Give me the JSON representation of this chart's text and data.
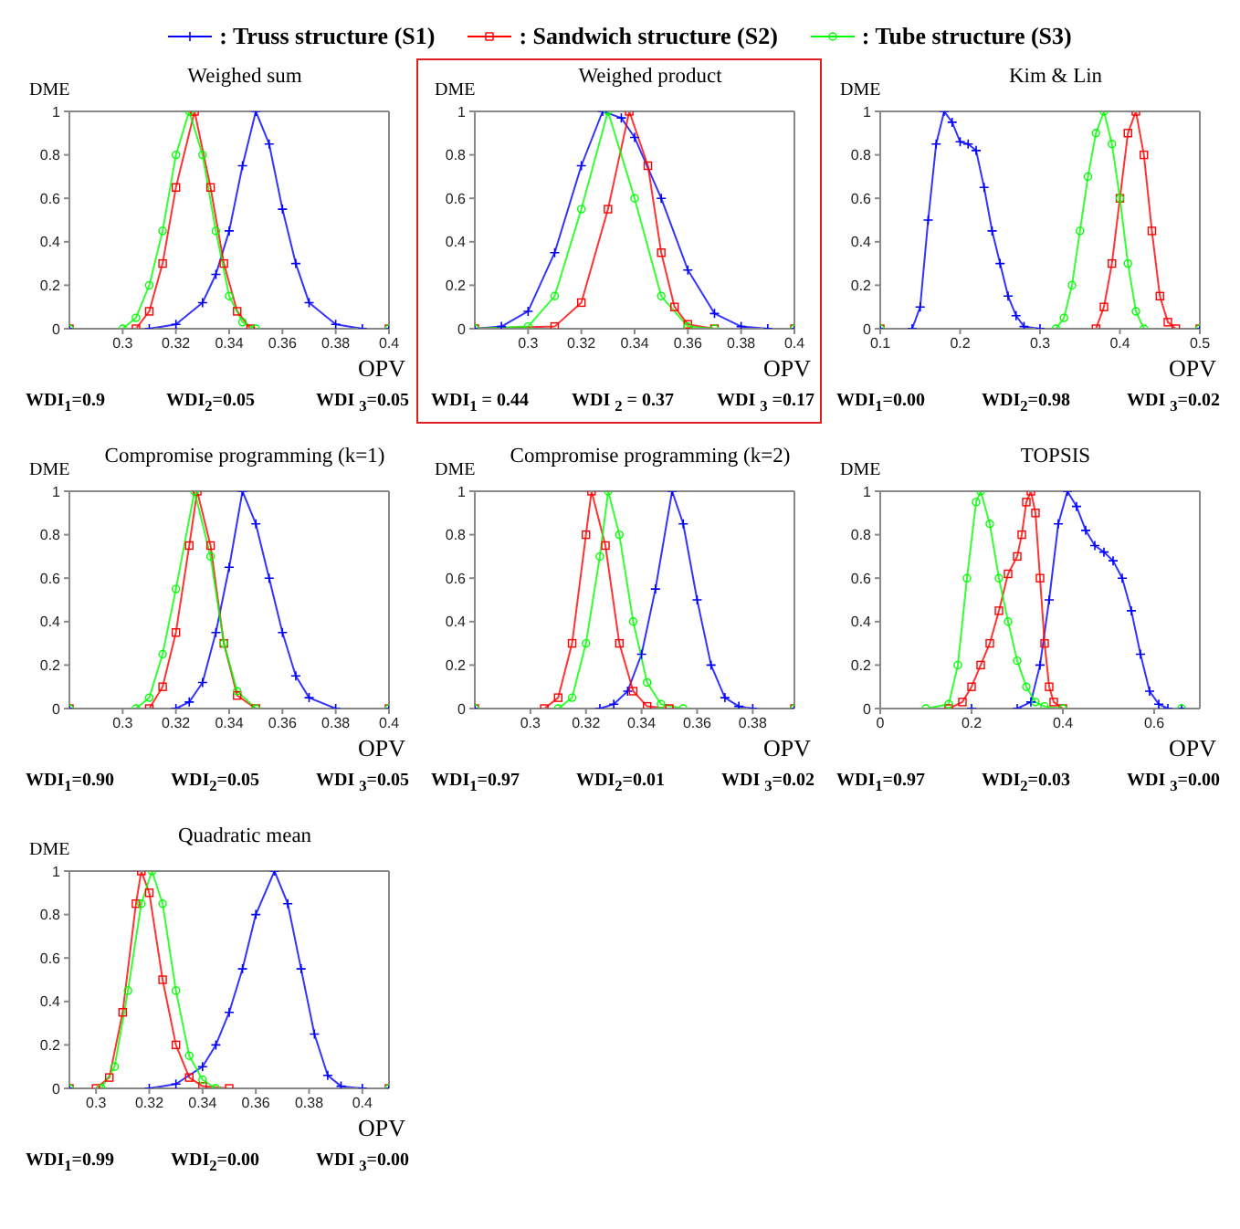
{
  "chart_data": [
    {
      "type": "line",
      "title": "Weighed sum",
      "xlabel": "OPV",
      "ylabel": "DME",
      "legend": "top",
      "line_style": "solid",
      "xlim": [
        0.28,
        0.4
      ],
      "xticks": [
        0.3,
        0.32,
        0.34,
        0.36,
        0.38,
        0.4
      ],
      "ylim": [
        0,
        1
      ],
      "yticks": [
        0,
        0.2,
        0.4,
        0.6,
        0.8,
        1
      ],
      "annotations": [
        "WDI$_{1}$=0.9",
        "WDI$_{2}$=0.05",
        "WDI $_{3}$=0.05"
      ],
      "series": [
        {
          "name": ": Truss structure (S1)",
          "color": "#0000ff",
          "marker": "cross",
          "x": [
            0.28,
            0.31,
            0.32,
            0.33,
            0.335,
            0.34,
            0.345,
            0.35,
            0.355,
            0.36,
            0.365,
            0.37,
            0.38,
            0.39,
            0.4
          ],
          "values": [
            0,
            0,
            0.02,
            0.12,
            0.25,
            0.45,
            0.75,
            1,
            0.85,
            0.55,
            0.3,
            0.12,
            0.02,
            0,
            0
          ]
        },
        {
          "name": ": Sandwich structure (S2)",
          "color": "#ff0000",
          "marker": "square",
          "x": [
            0.28,
            0.305,
            0.31,
            0.315,
            0.32,
            0.327,
            0.333,
            0.338,
            0.343,
            0.348,
            0.4
          ],
          "values": [
            0,
            0,
            0.08,
            0.3,
            0.65,
            1,
            0.65,
            0.3,
            0.08,
            0,
            0
          ]
        },
        {
          "name": ": Tube structure (S3)",
          "color": "#00ff00",
          "marker": "circle",
          "x": [
            0.28,
            0.3,
            0.305,
            0.31,
            0.315,
            0.32,
            0.325,
            0.33,
            0.335,
            0.34,
            0.345,
            0.35,
            0.4
          ],
          "values": [
            0,
            0,
            0.05,
            0.2,
            0.45,
            0.8,
            1,
            0.8,
            0.45,
            0.15,
            0.03,
            0,
            0
          ]
        }
      ]
    },
    {
      "type": "line",
      "title": "Weighed product",
      "xlabel": "OPV",
      "ylabel": "DME",
      "line_style": "solid",
      "xlim": [
        0.28,
        0.4
      ],
      "xticks": [
        0.3,
        0.32,
        0.34,
        0.36,
        0.38,
        0.4
      ],
      "ylim": [
        0,
        1
      ],
      "yticks": [
        0,
        0.2,
        0.4,
        0.6,
        0.8,
        1
      ],
      "annotations": [
        "WDI$_{1}$ = 0.44",
        "WDI $_{2}$ = 0.37",
        "WDI $_{3}$ =0.17"
      ],
      "series": [
        {
          "color": "#0000ff",
          "marker": "cross",
          "x": [
            0.28,
            0.29,
            0.3,
            0.31,
            0.32,
            0.328,
            0.335,
            0.34,
            0.35,
            0.36,
            0.37,
            0.38,
            0.39,
            0.4
          ],
          "values": [
            0,
            0.01,
            0.08,
            0.35,
            0.75,
            1,
            0.97,
            0.88,
            0.6,
            0.27,
            0.07,
            0.01,
            0,
            0
          ]
        },
        {
          "color": "#ff0000",
          "marker": "square",
          "x": [
            0.28,
            0.31,
            0.32,
            0.33,
            0.338,
            0.345,
            0.35,
            0.355,
            0.36,
            0.37,
            0.4
          ],
          "values": [
            0,
            0.01,
            0.12,
            0.55,
            1,
            0.75,
            0.35,
            0.1,
            0.02,
            0,
            0
          ]
        },
        {
          "color": "#00ff00",
          "marker": "circle",
          "x": [
            0.28,
            0.3,
            0.31,
            0.32,
            0.33,
            0.34,
            0.35,
            0.36,
            0.37,
            0.4
          ],
          "values": [
            0,
            0.01,
            0.15,
            0.55,
            1,
            0.6,
            0.15,
            0.01,
            0,
            0
          ]
        }
      ]
    },
    {
      "type": "line",
      "title": "Kim & Lin",
      "xlabel": "OPV",
      "ylabel": "DME",
      "line_style": "solid",
      "xlim": [
        0.1,
        0.5
      ],
      "xticks": [
        0.1,
        0.2,
        0.3,
        0.4,
        0.5
      ],
      "ylim": [
        0,
        1
      ],
      "yticks": [
        0,
        0.2,
        0.4,
        0.6,
        0.8,
        1
      ],
      "annotations": [
        "WDI$_{1}$=0.00",
        "WDI$_{2}$=0.98",
        "WDI $_{3}$=0.02"
      ],
      "series": [
        {
          "color": "#0000ff",
          "marker": "cross",
          "x": [
            0.1,
            0.14,
            0.15,
            0.16,
            0.17,
            0.18,
            0.19,
            0.2,
            0.21,
            0.22,
            0.23,
            0.24,
            0.25,
            0.26,
            0.27,
            0.28,
            0.3,
            0.5
          ],
          "values": [
            0,
            0,
            0.1,
            0.5,
            0.85,
            1,
            0.95,
            0.86,
            0.85,
            0.82,
            0.65,
            0.45,
            0.3,
            0.15,
            0.06,
            0.01,
            0,
            0
          ]
        },
        {
          "color": "#ff0000",
          "marker": "square",
          "x": [
            0.1,
            0.37,
            0.38,
            0.39,
            0.4,
            0.41,
            0.42,
            0.43,
            0.44,
            0.45,
            0.46,
            0.47,
            0.5
          ],
          "values": [
            0,
            0,
            0.1,
            0.3,
            0.6,
            0.9,
            1,
            0.8,
            0.45,
            0.15,
            0.03,
            0,
            0
          ]
        },
        {
          "color": "#00ff00",
          "marker": "circle",
          "x": [
            0.1,
            0.32,
            0.33,
            0.34,
            0.35,
            0.36,
            0.37,
            0.38,
            0.39,
            0.4,
            0.41,
            0.42,
            0.43,
            0.5
          ],
          "values": [
            0,
            0,
            0.05,
            0.2,
            0.45,
            0.7,
            0.9,
            1,
            0.85,
            0.6,
            0.3,
            0.08,
            0,
            0
          ]
        }
      ]
    },
    {
      "type": "line",
      "title": "Compromise programming (k=1)",
      "xlabel": "OPV",
      "ylabel": "DME",
      "line_style": "solid",
      "xlim": [
        0.28,
        0.4
      ],
      "xticks": [
        0.3,
        0.32,
        0.34,
        0.36,
        0.38,
        0.4
      ],
      "ylim": [
        0,
        1
      ],
      "yticks": [
        0,
        0.2,
        0.4,
        0.6,
        0.8,
        1
      ],
      "annotations": [
        "WDI$_{1}$=0.90",
        "WDI$_{2}$=0.05",
        "WDI $_{3}$=0.05"
      ],
      "series": [
        {
          "color": "#0000ff",
          "marker": "cross",
          "x": [
            0.28,
            0.32,
            0.325,
            0.33,
            0.335,
            0.34,
            0.345,
            0.35,
            0.355,
            0.36,
            0.365,
            0.37,
            0.38,
            0.4
          ],
          "values": [
            0,
            0,
            0.03,
            0.12,
            0.35,
            0.65,
            1,
            0.85,
            0.6,
            0.35,
            0.15,
            0.05,
            0,
            0
          ]
        },
        {
          "color": "#ff0000",
          "marker": "square",
          "x": [
            0.28,
            0.31,
            0.315,
            0.32,
            0.325,
            0.328,
            0.333,
            0.338,
            0.343,
            0.35,
            0.4
          ],
          "values": [
            0,
            0,
            0.1,
            0.35,
            0.75,
            1,
            0.75,
            0.3,
            0.06,
            0,
            0
          ]
        },
        {
          "color": "#00ff00",
          "marker": "circle",
          "x": [
            0.28,
            0.305,
            0.31,
            0.315,
            0.32,
            0.327,
            0.333,
            0.338,
            0.343,
            0.35,
            0.4
          ],
          "values": [
            0,
            0,
            0.05,
            0.25,
            0.55,
            1,
            0.7,
            0.3,
            0.08,
            0,
            0
          ]
        }
      ]
    },
    {
      "type": "line",
      "title": "Compromise programming (k=2)",
      "xlabel": "OPV",
      "ylabel": "DME",
      "line_style": "solid",
      "xlim": [
        0.28,
        0.395
      ],
      "xticks": [
        0.3,
        0.32,
        0.34,
        0.36,
        0.38
      ],
      "ylim": [
        0,
        1
      ],
      "yticks": [
        0,
        0.2,
        0.4,
        0.6,
        0.8,
        1
      ],
      "annotations": [
        "WDI$_{1}$=0.97",
        "WDI$_{2}$=0.01",
        "WDI $_{3}$=0.02"
      ],
      "series": [
        {
          "color": "#0000ff",
          "marker": "cross",
          "x": [
            0.28,
            0.325,
            0.33,
            0.335,
            0.34,
            0.345,
            0.351,
            0.355,
            0.36,
            0.365,
            0.37,
            0.375,
            0.38,
            0.395
          ],
          "values": [
            0,
            0,
            0.02,
            0.08,
            0.25,
            0.55,
            1,
            0.85,
            0.5,
            0.2,
            0.05,
            0.01,
            0,
            0
          ]
        },
        {
          "color": "#ff0000",
          "marker": "square",
          "x": [
            0.28,
            0.305,
            0.31,
            0.315,
            0.32,
            0.322,
            0.327,
            0.332,
            0.337,
            0.342,
            0.35,
            0.395
          ],
          "values": [
            0,
            0,
            0.05,
            0.3,
            0.8,
            1,
            0.75,
            0.3,
            0.08,
            0.01,
            0,
            0
          ]
        },
        {
          "color": "#00ff00",
          "marker": "circle",
          "x": [
            0.28,
            0.31,
            0.315,
            0.32,
            0.325,
            0.328,
            0.332,
            0.337,
            0.342,
            0.347,
            0.355,
            0.395
          ],
          "values": [
            0,
            0,
            0.05,
            0.3,
            0.7,
            1,
            0.8,
            0.4,
            0.12,
            0.02,
            0,
            0
          ]
        }
      ]
    },
    {
      "type": "line",
      "title": "TOPSIS",
      "xlabel": "OPV",
      "ylabel": "DME",
      "line_style": "solid",
      "xlim": [
        0,
        0.7
      ],
      "xticks": [
        0,
        0.2,
        0.4,
        0.6
      ],
      "ylim": [
        0,
        1
      ],
      "yticks": [
        0,
        0.2,
        0.4,
        0.6,
        0.8,
        1
      ],
      "annotations": [
        "WDI$_{1}$=0.97",
        "WDI$_{2}$=0.03",
        "WDI $_{3}$=0.00"
      ],
      "series": [
        {
          "color": "#0000ff",
          "marker": "cross",
          "x": [
            0.2,
            0.3,
            0.33,
            0.35,
            0.37,
            0.39,
            0.41,
            0.43,
            0.45,
            0.47,
            0.49,
            0.51,
            0.53,
            0.55,
            0.57,
            0.59,
            0.61,
            0.63,
            0.66
          ],
          "values": [
            0,
            0,
            0.03,
            0.2,
            0.5,
            0.85,
            1,
            0.93,
            0.82,
            0.75,
            0.72,
            0.68,
            0.6,
            0.45,
            0.25,
            0.08,
            0.02,
            0,
            0
          ]
        },
        {
          "color": "#ff0000",
          "marker": "square",
          "x": [
            0.15,
            0.18,
            0.2,
            0.22,
            0.24,
            0.26,
            0.28,
            0.3,
            0.31,
            0.32,
            0.33,
            0.34,
            0.35,
            0.36,
            0.37,
            0.38,
            0.4
          ],
          "values": [
            0,
            0.03,
            0.1,
            0.2,
            0.3,
            0.45,
            0.62,
            0.7,
            0.8,
            0.95,
            1,
            0.9,
            0.6,
            0.3,
            0.1,
            0.03,
            0
          ]
        },
        {
          "color": "#00ff00",
          "marker": "circle",
          "x": [
            0.1,
            0.15,
            0.17,
            0.19,
            0.21,
            0.22,
            0.24,
            0.26,
            0.28,
            0.3,
            0.32,
            0.34,
            0.36,
            0.4,
            0.66
          ],
          "values": [
            0,
            0.02,
            0.2,
            0.6,
            0.95,
            1,
            0.85,
            0.6,
            0.4,
            0.22,
            0.1,
            0.03,
            0.01,
            0,
            0
          ]
        }
      ]
    },
    {
      "type": "line",
      "title": "Quadratic mean",
      "xlabel": "OPV",
      "ylabel": "DME",
      "line_style": "solid",
      "xlim": [
        0.29,
        0.41
      ],
      "xticks": [
        0.3,
        0.32,
        0.34,
        0.36,
        0.38,
        0.4
      ],
      "ylim": [
        0,
        1
      ],
      "yticks": [
        0,
        0.2,
        0.4,
        0.6,
        0.8,
        1
      ],
      "annotations": [
        "WDI$_{1}$=0.99",
        "WDI$_{2}$=0.00",
        "WDI $_{3}$=0.00"
      ],
      "series": [
        {
          "color": "#0000ff",
          "marker": "cross",
          "x": [
            0.29,
            0.32,
            0.33,
            0.34,
            0.345,
            0.35,
            0.355,
            0.36,
            0.367,
            0.372,
            0.377,
            0.382,
            0.387,
            0.392,
            0.4,
            0.41
          ],
          "values": [
            0,
            0,
            0.02,
            0.1,
            0.2,
            0.35,
            0.55,
            0.8,
            1,
            0.85,
            0.55,
            0.25,
            0.06,
            0.01,
            0,
            0
          ]
        },
        {
          "color": "#ff0000",
          "marker": "square",
          "x": [
            0.29,
            0.3,
            0.305,
            0.31,
            0.315,
            0.317,
            0.32,
            0.325,
            0.33,
            0.335,
            0.34,
            0.35,
            0.41
          ],
          "values": [
            0,
            0,
            0.05,
            0.35,
            0.85,
            1,
            0.9,
            0.5,
            0.2,
            0.05,
            0.01,
            0,
            0
          ]
        },
        {
          "color": "#00ff00",
          "marker": "circle",
          "x": [
            0.29,
            0.302,
            0.307,
            0.312,
            0.317,
            0.321,
            0.325,
            0.33,
            0.335,
            0.34,
            0.345,
            0.41
          ],
          "values": [
            0,
            0,
            0.1,
            0.45,
            0.85,
            1,
            0.85,
            0.45,
            0.15,
            0.04,
            0,
            0
          ]
        }
      ]
    }
  ]
}
